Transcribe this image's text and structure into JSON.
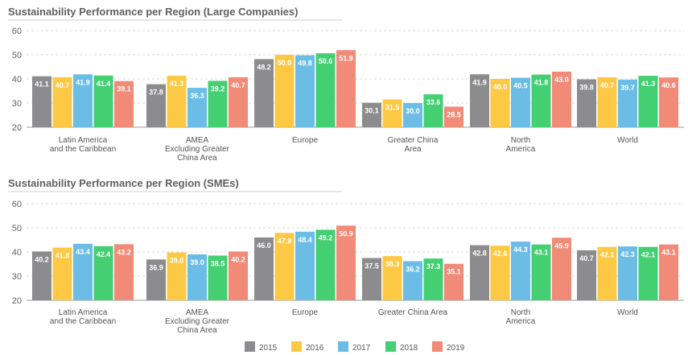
{
  "chart_data": [
    {
      "type": "bar",
      "title": "Sustainability Performance per Region (Large Companies)",
      "categories": [
        [
          "Latin America",
          "and the Caribbean"
        ],
        [
          "AMEA",
          "Excluding Greater",
          "China Area"
        ],
        [
          "Europe"
        ],
        [
          "Greater China",
          "Area"
        ],
        [
          "North",
          "America"
        ],
        [
          "World"
        ]
      ],
      "series": [
        {
          "name": "2015",
          "values": [
            41.1,
            37.8,
            48.2,
            30.1,
            41.9,
            39.8
          ]
        },
        {
          "name": "2016",
          "values": [
            40.7,
            41.3,
            50.0,
            31.5,
            40.0,
            40.7
          ]
        },
        {
          "name": "2017",
          "values": [
            41.9,
            36.3,
            49.8,
            30.0,
            40.5,
            39.7
          ]
        },
        {
          "name": "2018",
          "values": [
            41.4,
            39.2,
            50.6,
            33.6,
            41.8,
            41.3
          ]
        },
        {
          "name": "2019",
          "values": [
            39.1,
            40.7,
            51.9,
            28.5,
            43.0,
            40.6
          ]
        }
      ],
      "ylim": [
        20,
        60
      ],
      "yticks": [
        20,
        30,
        40,
        50,
        60
      ],
      "grid": true
    },
    {
      "type": "bar",
      "title": "Sustainability Performance per Region (SMEs)",
      "categories": [
        [
          "Latin America",
          "and the Caribbean"
        ],
        [
          "AMEA",
          "Excluding Greater",
          "China Area"
        ],
        [
          "Europe"
        ],
        [
          "Greater China Area"
        ],
        [
          "North",
          "America"
        ],
        [
          "World"
        ]
      ],
      "series": [
        {
          "name": "2015",
          "values": [
            40.2,
            36.9,
            46.0,
            37.5,
            42.8,
            40.7
          ]
        },
        {
          "name": "2016",
          "values": [
            41.8,
            39.8,
            47.9,
            38.3,
            42.6,
            42.1
          ]
        },
        {
          "name": "2017",
          "values": [
            43.4,
            39.0,
            48.4,
            36.2,
            44.3,
            42.3
          ]
        },
        {
          "name": "2018",
          "values": [
            42.4,
            38.5,
            49.2,
            37.3,
            43.1,
            42.1
          ]
        },
        {
          "name": "2019",
          "values": [
            43.2,
            40.2,
            50.9,
            35.1,
            45.9,
            43.1
          ]
        }
      ],
      "ylim": [
        20,
        60
      ],
      "yticks": [
        20,
        30,
        40,
        50,
        60
      ],
      "grid": true
    }
  ],
  "legend": {
    "placement": "bottom-center",
    "items": [
      {
        "label": "2015",
        "color": "#8c8c8e"
      },
      {
        "label": "2016",
        "color": "#fdc945"
      },
      {
        "label": "2017",
        "color": "#6cbde6"
      },
      {
        "label": "2018",
        "color": "#43cf72"
      },
      {
        "label": "2019",
        "color": "#f28a78"
      }
    ]
  }
}
